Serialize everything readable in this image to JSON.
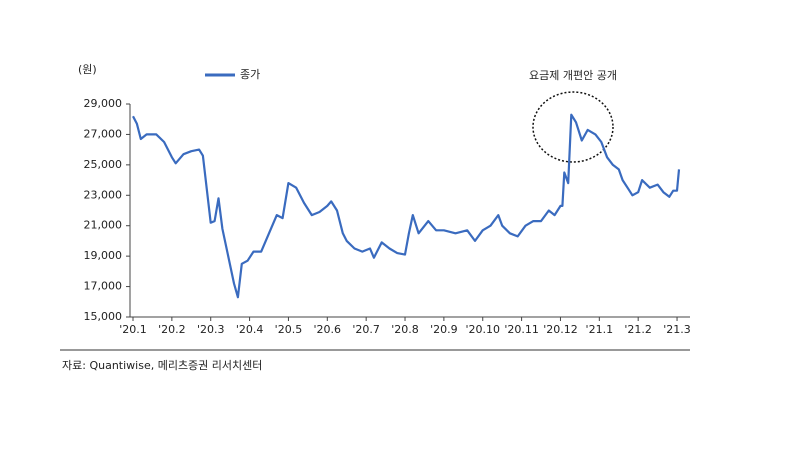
{
  "chart_data": {
    "type": "line",
    "unit_label": "(원)",
    "annotation": "요금제 개편안 공개",
    "source": "자료: Quantiwise, 메리츠증권 리서치센터",
    "xlim": [
      0,
      14.5
    ],
    "xticks": [
      {
        "value": 0,
        "label": "'20.1"
      },
      {
        "value": 1,
        "label": "'20.2"
      },
      {
        "value": 2,
        "label": "'20.3"
      },
      {
        "value": 3,
        "label": "'20.4"
      },
      {
        "value": 4,
        "label": "'20.5"
      },
      {
        "value": 5,
        "label": "'20.6"
      },
      {
        "value": 6,
        "label": "'20.7"
      },
      {
        "value": 7,
        "label": "'20.8"
      },
      {
        "value": 8,
        "label": "'20.9"
      },
      {
        "value": 9,
        "label": "'20.10"
      },
      {
        "value": 10,
        "label": "'20.11"
      },
      {
        "value": 11,
        "label": "'20.12"
      },
      {
        "value": 12,
        "label": "'21.1"
      },
      {
        "value": 13,
        "label": "'21.2"
      },
      {
        "value": 14,
        "label": "'21.3"
      }
    ],
    "ylim": [
      15000,
      29000
    ],
    "yticks": [
      {
        "value": 15000,
        "label": "15,000"
      },
      {
        "value": 17000,
        "label": "17,000"
      },
      {
        "value": 19000,
        "label": "19,000"
      },
      {
        "value": 21000,
        "label": "21,000"
      },
      {
        "value": 23000,
        "label": "23,000"
      },
      {
        "value": 25000,
        "label": "25,000"
      },
      {
        "value": 27000,
        "label": "27,000"
      },
      {
        "value": 29000,
        "label": "29,000"
      }
    ],
    "legend": "top-left",
    "series": [
      {
        "name": "종가",
        "color": "#3a6bbf",
        "x": [
          0,
          0.1,
          0.2,
          0.35,
          0.6,
          0.8,
          1.0,
          1.1,
          1.3,
          1.5,
          1.7,
          1.8,
          2.0,
          2.1,
          2.2,
          2.3,
          2.45,
          2.6,
          2.7,
          2.8,
          2.95,
          3.1,
          3.3,
          3.5,
          3.7,
          3.85,
          4.0,
          4.2,
          4.4,
          4.6,
          4.8,
          5.0,
          5.1,
          5.25,
          5.4,
          5.5,
          5.7,
          5.9,
          6.1,
          6.2,
          6.4,
          6.6,
          6.8,
          7.0,
          7.1,
          7.2,
          7.35,
          7.6,
          7.8,
          8.0,
          8.3,
          8.6,
          8.8,
          9.0,
          9.2,
          9.4,
          9.5,
          9.7,
          9.9,
          10.1,
          10.3,
          10.5,
          10.7,
          10.85,
          11.0,
          11.05,
          11.1,
          11.2,
          11.28,
          11.4,
          11.55,
          11.7,
          11.9,
          12.05,
          12.2,
          12.35,
          12.5,
          12.6,
          12.75,
          12.85,
          13.0,
          13.1,
          13.3,
          13.5,
          13.65,
          13.8,
          13.9,
          14.0,
          14.05
        ],
        "values": [
          28200,
          27700,
          26700,
          27000,
          27000,
          26500,
          25500,
          25100,
          25700,
          25900,
          26000,
          25600,
          21200,
          21300,
          22800,
          20800,
          19000,
          17200,
          16300,
          18500,
          18700,
          19300,
          19300,
          20500,
          21700,
          21500,
          23800,
          23500,
          22500,
          21700,
          21900,
          22300,
          22600,
          22000,
          20500,
          20000,
          19500,
          19300,
          19500,
          18900,
          19900,
          19500,
          19200,
          19100,
          20500,
          21700,
          20500,
          21300,
          20700,
          20700,
          20500,
          20700,
          20000,
          20700,
          21000,
          21700,
          21000,
          20500,
          20300,
          21000,
          21300,
          21300,
          22000,
          21700,
          22300,
          22300,
          24500,
          23800,
          28300,
          27800,
          26600,
          27300,
          27000,
          26500,
          25500,
          25000,
          24700,
          24000,
          23400,
          23000,
          23200,
          24000,
          23500,
          23700,
          23200,
          22900,
          23300,
          23300,
          24700
        ]
      }
    ]
  }
}
